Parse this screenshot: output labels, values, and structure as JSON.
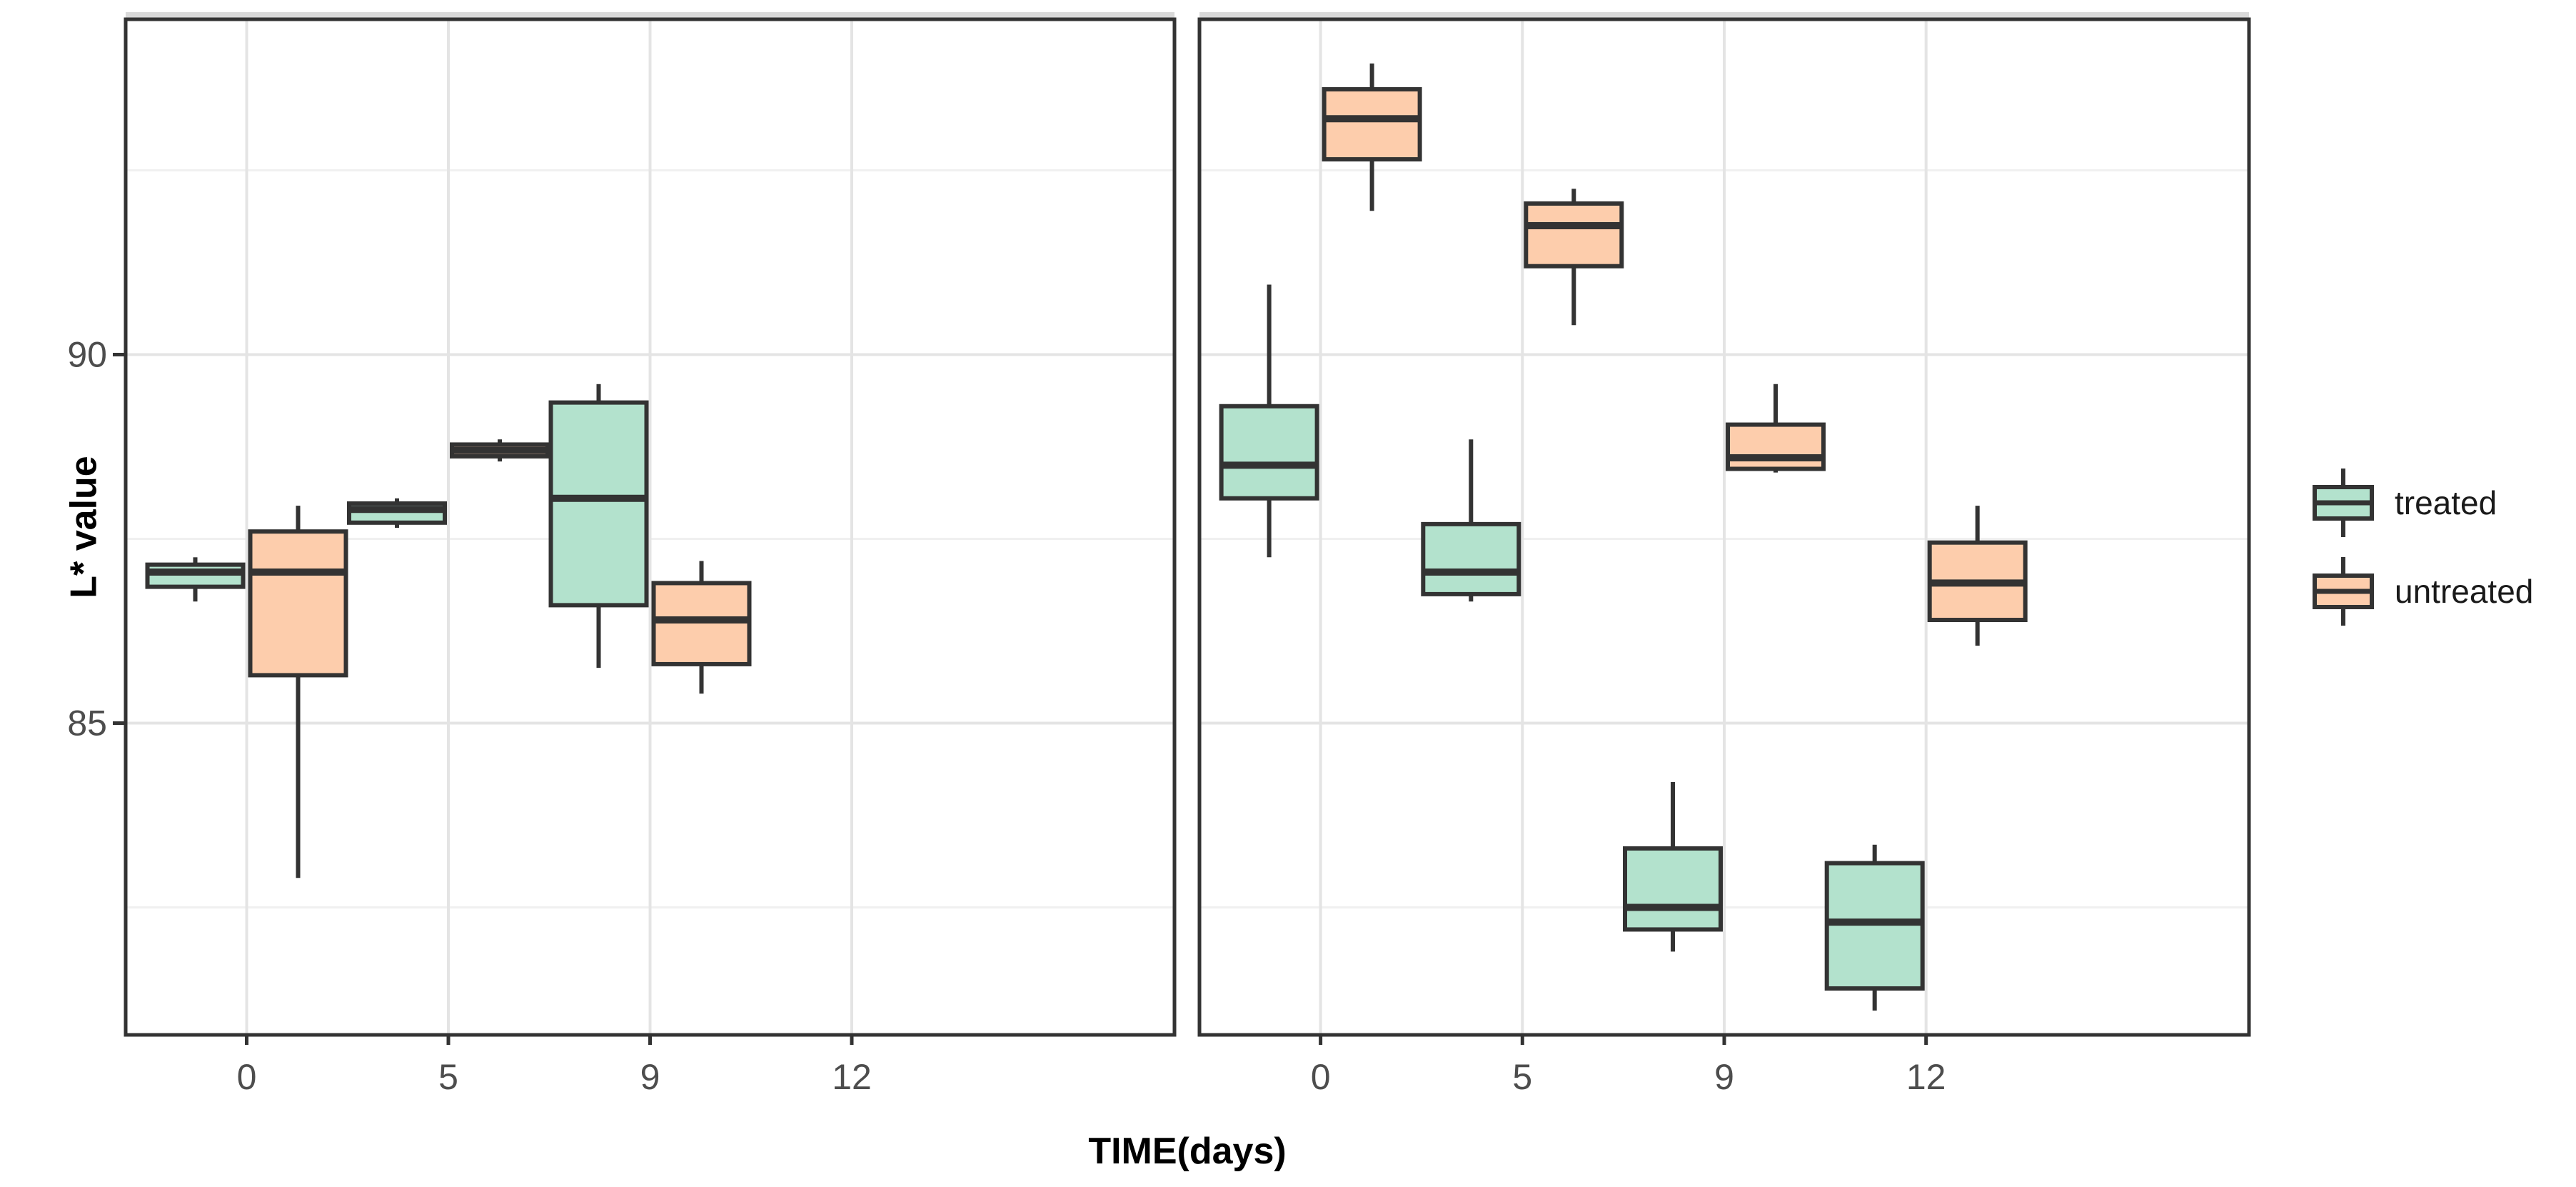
{
  "chart_data": {
    "type": "boxplot",
    "title": "",
    "xlabel": "TIME(days)",
    "ylabel": "L* value",
    "categories": [
      "0",
      "5",
      "9",
      "12"
    ],
    "series_names": [
      "treated",
      "untreated"
    ],
    "y_ticks": [
      85,
      90
    ],
    "y_minor_ticks": [
      82.5,
      87.5,
      92.5
    ],
    "ylim": [
      80.77,
      94.55
    ],
    "grid": "on",
    "legend_position": "right",
    "facets": [
      {
        "name": "facet-left",
        "boxes": [
          {
            "time": "0",
            "series": "treated",
            "min": 86.65,
            "q1": 86.85,
            "median": 87.05,
            "q3": 87.15,
            "max": 87.25
          },
          {
            "time": "0",
            "series": "untreated",
            "min": 82.9,
            "q1": 85.65,
            "median": 87.05,
            "q3": 87.6,
            "max": 87.95
          },
          {
            "time": "5",
            "series": "treated",
            "min": 87.65,
            "q1": 87.72,
            "median": 87.9,
            "q3": 87.98,
            "max": 88.05
          },
          {
            "time": "5",
            "series": "untreated",
            "min": 88.55,
            "q1": 88.62,
            "median": 88.7,
            "q3": 88.78,
            "max": 88.85
          },
          {
            "time": "9",
            "series": "treated",
            "min": 85.75,
            "q1": 86.6,
            "median": 88.05,
            "q3": 89.35,
            "max": 89.6
          },
          {
            "time": "9",
            "series": "untreated",
            "min": 85.4,
            "q1": 85.8,
            "median": 86.4,
            "q3": 86.9,
            "max": 87.2
          }
        ]
      },
      {
        "name": "facet-right",
        "boxes": [
          {
            "time": "0",
            "series": "treated",
            "min": 87.25,
            "q1": 88.05,
            "median": 88.5,
            "q3": 89.3,
            "max": 90.95
          },
          {
            "time": "0",
            "series": "untreated",
            "min": 91.95,
            "q1": 92.65,
            "median": 93.2,
            "q3": 93.6,
            "max": 93.95
          },
          {
            "time": "5",
            "series": "treated",
            "min": 86.65,
            "q1": 86.75,
            "median": 87.05,
            "q3": 87.7,
            "max": 88.85
          },
          {
            "time": "5",
            "series": "untreated",
            "min": 90.4,
            "q1": 91.2,
            "median": 91.75,
            "q3": 92.05,
            "max": 92.25
          },
          {
            "time": "9",
            "series": "treated",
            "min": 81.9,
            "q1": 82.2,
            "median": 82.5,
            "q3": 83.3,
            "max": 84.2
          },
          {
            "time": "9",
            "series": "untreated",
            "min": 88.4,
            "q1": 88.45,
            "median": 88.6,
            "q3": 89.05,
            "max": 89.6
          },
          {
            "time": "12",
            "series": "treated",
            "min": 81.1,
            "q1": 81.4,
            "median": 82.3,
            "q3": 83.1,
            "max": 83.35
          },
          {
            "time": "12",
            "series": "untreated",
            "min": 86.05,
            "q1": 86.4,
            "median": 86.9,
            "q3": 87.45,
            "max": 87.95
          }
        ]
      }
    ]
  },
  "legend": {
    "items": [
      {
        "label": "treated",
        "color": "#b3e2cd"
      },
      {
        "label": "untreated",
        "color": "#fdcdac"
      }
    ]
  },
  "colors": {
    "treated_fill": "#b3e2cd",
    "untreated_fill": "#fdcdac",
    "box_border": "#333333",
    "grid_major": "#e4e4e4",
    "grid_minor": "#f0f0f0",
    "panel_border": "#333333",
    "strip_background": "#d9d9d9",
    "tick_label": "#4d4d4d",
    "axis_title": "#000000",
    "background": "#ffffff"
  }
}
